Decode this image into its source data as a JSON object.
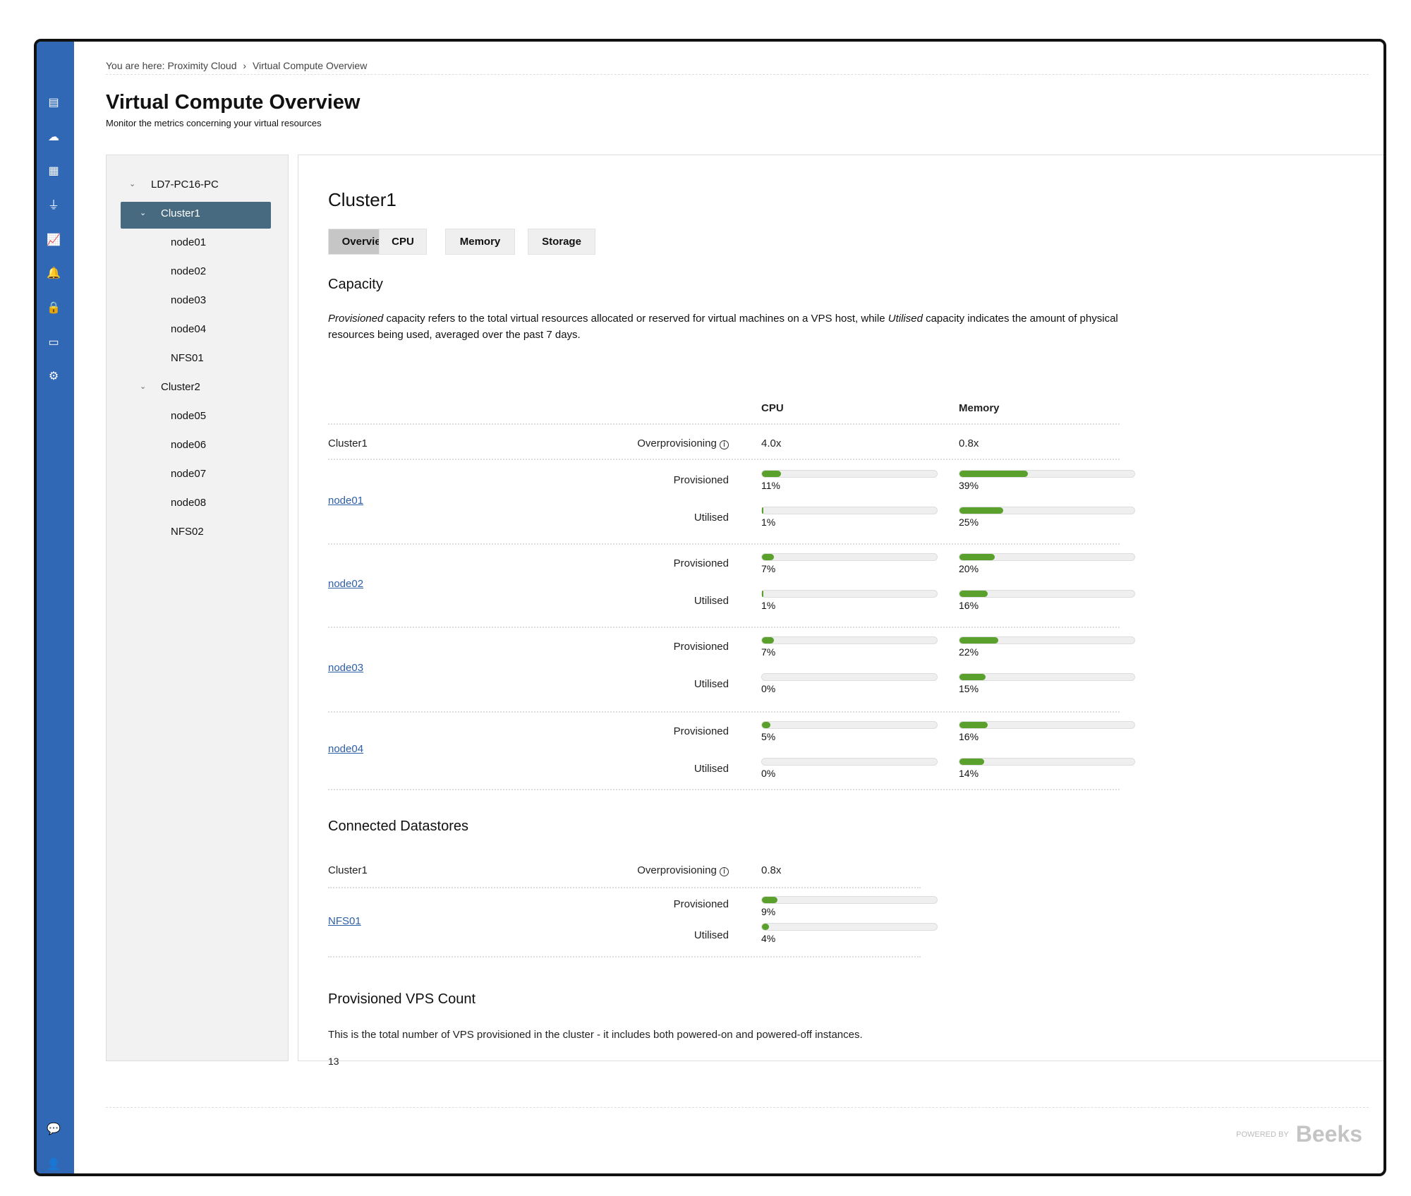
{
  "breadcrumb": {
    "prefix": "You are here:",
    "items": [
      "Proximity Cloud",
      "Virtual Compute Overview"
    ],
    "sep": "›"
  },
  "page": {
    "title": "Virtual Compute Overview",
    "subtitle": "Monitor the metrics concerning your virtual resources"
  },
  "sidebar": {
    "icons": [
      "document-icon",
      "cloud-icon",
      "server-icon",
      "plug-icon",
      "chart-icon",
      "bell-icon",
      "lock-icon",
      "calendar-icon",
      "gear-icon"
    ],
    "bottom_icons": [
      "chat-icon",
      "user-icon"
    ]
  },
  "tree": {
    "root": "LD7-PC16-PC",
    "clusters": [
      {
        "label": "Cluster1",
        "selected": true,
        "children": [
          "node01",
          "node02",
          "node03",
          "node04",
          "NFS01"
        ]
      },
      {
        "label": "Cluster2",
        "selected": false,
        "children": [
          "node05",
          "node06",
          "node07",
          "node08",
          "NFS02"
        ]
      }
    ]
  },
  "main": {
    "title": "Cluster1",
    "tabs": [
      "Overview",
      "CPU",
      "Memory",
      "Storage"
    ],
    "active_tab": "Overview",
    "capacity": {
      "heading": "Capacity",
      "para_em1": "Provisioned",
      "para_mid": " capacity refers to the total virtual resources allocated or reserved for virtual machines on a VPS host, while ",
      "para_em2": "Utilised",
      "para_end": " capacity indicates the amount of physical resources being used, averaged over the past 7 days.",
      "col_cpu": "CPU",
      "col_mem": "Memory",
      "cluster": "Cluster1",
      "overprov_label": "Overprovisioning",
      "cpu_overprov": "4.0x",
      "mem_overprov": "0.8x",
      "prov_label": "Provisioned",
      "util_label": "Utilised",
      "nodes": [
        {
          "name": "node01",
          "cpu_prov": 11,
          "cpu_util": 1,
          "mem_prov": 39,
          "mem_util": 25
        },
        {
          "name": "node02",
          "cpu_prov": 7,
          "cpu_util": 1,
          "mem_prov": 20,
          "mem_util": 16
        },
        {
          "name": "node03",
          "cpu_prov": 7,
          "cpu_util": 0,
          "mem_prov": 22,
          "mem_util": 15
        },
        {
          "name": "node04",
          "cpu_prov": 5,
          "cpu_util": 0,
          "mem_prov": 16,
          "mem_util": 14
        }
      ]
    },
    "datastores": {
      "heading": "Connected Datastores",
      "cluster": "Cluster1",
      "overprov_label": "Overprovisioning",
      "overprov": "0.8x",
      "name": "NFS01",
      "prov_label": "Provisioned",
      "util_label": "Utilised",
      "prov": 9,
      "util": 4
    },
    "vps": {
      "heading": "Provisioned VPS Count",
      "desc": "This is the total number of VPS provisioned in the cluster - it includes both powered-on and powered-off instances.",
      "count": "13"
    }
  },
  "footer": {
    "powered_by": "POWERED BY",
    "brand": "Beeks"
  },
  "colors": {
    "sidebar": "#3068b5",
    "selected": "#476a80",
    "bar_fill": "#5aa02c",
    "link": "#2d5fa6"
  }
}
